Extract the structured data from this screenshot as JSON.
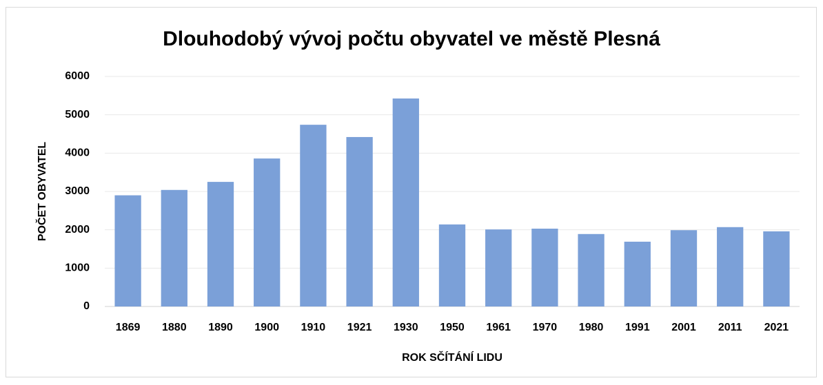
{
  "chart_data": {
    "type": "bar",
    "title": "Dlouhodobý vývoj počtu obyvatel ve městě Plesná",
    "x_label": "ROK SČÍTÁNÍ LIDU",
    "y_label": "POČET OBYVATEL",
    "categories": [
      "1869",
      "1880",
      "1890",
      "1900",
      "1910",
      "1921",
      "1930",
      "1950",
      "1961",
      "1970",
      "1980",
      "1991",
      "2001",
      "2011",
      "2021"
    ],
    "values": [
      2900,
      3040,
      3250,
      3860,
      4740,
      4420,
      5425,
      2140,
      2010,
      2030,
      1890,
      1690,
      1990,
      2070,
      1960
    ],
    "color": "#7ba0d8",
    "ylim": [
      0,
      6000
    ],
    "yticks": [
      0,
      1000,
      2000,
      3000,
      4000,
      5000,
      6000
    ],
    "grid": true
  }
}
